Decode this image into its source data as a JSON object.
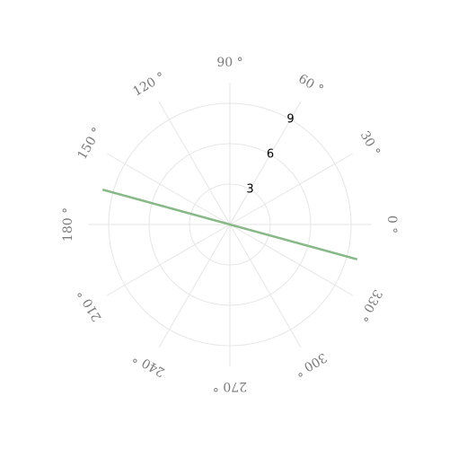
{
  "chart_data": {
    "type": "line",
    "projection": "polar",
    "title": "",
    "angle_unit": "degrees",
    "angular_ticks": [
      {
        "value": 0,
        "label": "0 °"
      },
      {
        "value": 30,
        "label": "30 °"
      },
      {
        "value": 60,
        "label": "60 °"
      },
      {
        "value": 90,
        "label": "90 °"
      },
      {
        "value": 120,
        "label": "120 °"
      },
      {
        "value": 150,
        "label": "150 °"
      },
      {
        "value": 180,
        "label": "180 °"
      },
      {
        "value": 210,
        "label": "210 °"
      },
      {
        "value": 240,
        "label": "240 °"
      },
      {
        "value": 270,
        "label": "270 °"
      },
      {
        "value": 300,
        "label": "300 °"
      },
      {
        "value": 330,
        "label": "330 °"
      }
    ],
    "radial_ticks": [
      {
        "value": 3,
        "label": "3"
      },
      {
        "value": 6,
        "label": "6"
      },
      {
        "value": 9,
        "label": "9"
      }
    ],
    "radial_range": [
      0,
      9
    ],
    "radial_tick_angle": 60,
    "grid": true,
    "series": [
      {
        "color": "#88b888",
        "points": [
          {
            "theta": 164.7,
            "r": 9.8
          },
          {
            "theta": 0,
            "r": 0
          },
          {
            "theta": 344.7,
            "r": 9.8
          }
        ]
      }
    ],
    "colors": {
      "grid": "#e6e6e6",
      "angle_text": "#7a7a7a",
      "radial_text": "#000000"
    }
  }
}
